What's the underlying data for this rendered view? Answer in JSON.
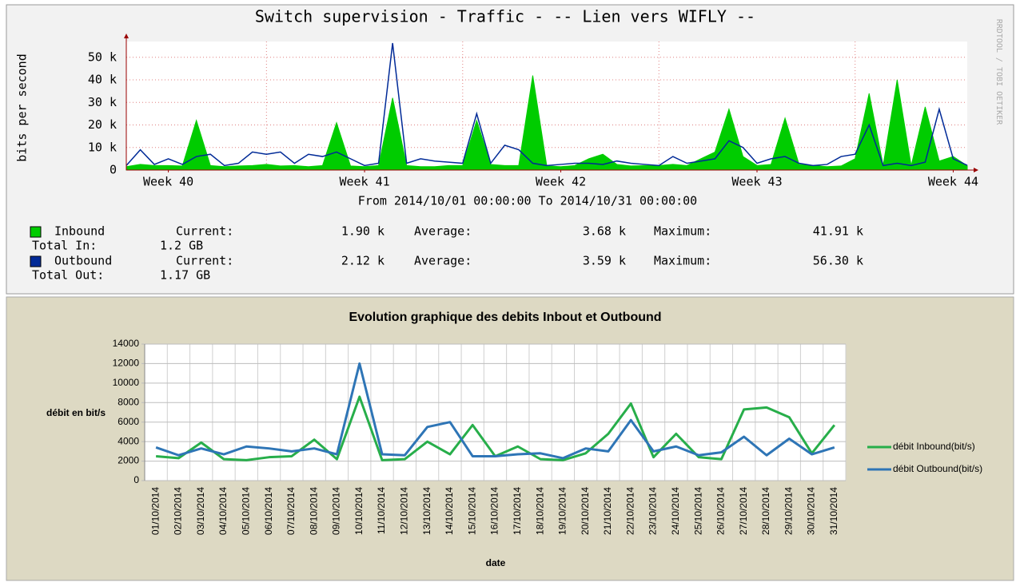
{
  "chart_data": [
    {
      "type": "area",
      "title": "Switch supervision - Traffic - -- Lien vers WIFLY --",
      "subtitle": "From 2014/10/01 00:00:00 To 2014/10/31 00:00:00",
      "ylabel": "bits per second",
      "watermark": "RRDTOOL / TOBI OETIKER",
      "x": [
        0,
        0.5,
        1,
        1.5,
        2,
        2.5,
        3,
        3.5,
        4,
        4.5,
        5,
        5.5,
        6,
        6.5,
        7,
        7.5,
        8,
        8.5,
        9,
        9.5,
        10,
        10.5,
        11,
        11.5,
        12,
        12.5,
        13,
        13.5,
        14,
        14.5,
        15,
        15.5,
        16,
        16.5,
        17,
        17.5,
        18,
        18.5,
        19,
        19.5,
        20,
        20.5,
        21,
        21.5,
        22,
        22.5,
        23,
        23.5,
        24,
        24.5,
        25,
        25.5,
        26,
        26.5,
        27,
        27.5,
        28,
        28.5,
        29,
        29.5,
        30
      ],
      "xlim": [
        0,
        30
      ],
      "xticks": [
        {
          "value": 1.5,
          "label": "Week 40"
        },
        {
          "value": 8.5,
          "label": "Week 41"
        },
        {
          "value": 15.5,
          "label": "Week 42"
        },
        {
          "value": 22.5,
          "label": "Week 43"
        },
        {
          "value": 29.5,
          "label": "Week 44"
        }
      ],
      "x_major_grid": [
        5,
        12,
        19,
        26
      ],
      "ylim": [
        0,
        57000
      ],
      "yticks": [
        0,
        {
          "value": 10000,
          "label": "10 k"
        },
        {
          "value": 20000,
          "label": "20 k"
        },
        {
          "value": 30000,
          "label": "30 k"
        },
        {
          "value": 40000,
          "label": "40 k"
        },
        {
          "value": 50000,
          "label": "50 k"
        }
      ],
      "grid": true,
      "stat_labels": {
        "current": "Current:",
        "average": "Average:",
        "maximum": "Maximum:"
      },
      "series": [
        {
          "name": "Inbound",
          "color": "#00cc00",
          "style": "area",
          "values": [
            1500,
            2500,
            2000,
            2000,
            1800,
            22000,
            2000,
            1500,
            1800,
            2000,
            2500,
            1800,
            2000,
            1500,
            2000,
            21000,
            1800,
            1500,
            2000,
            32000,
            2000,
            1500,
            1500,
            2000,
            2000,
            22000,
            2500,
            2000,
            2000,
            41910,
            1800,
            1500,
            2000,
            5000,
            7000,
            2500,
            1800,
            2000,
            2000,
            2500,
            2000,
            5000,
            8000,
            27000,
            6000,
            2000,
            2500,
            23000,
            2500,
            2000,
            1500,
            1800,
            5000,
            34000,
            2000,
            40000,
            1900,
            28000,
            4000,
            6000,
            1900
          ],
          "current": "1.90 k",
          "average": "3.68 k",
          "maximum": "41.91 k",
          "total_label": "Total In:",
          "total": "1.2 GB"
        },
        {
          "name": "Outbound",
          "color": "#002a97",
          "style": "line",
          "values": [
            2000,
            9000,
            2500,
            5000,
            2500,
            6000,
            7000,
            2000,
            3000,
            8000,
            7000,
            8000,
            3000,
            7000,
            6000,
            8000,
            5000,
            2000,
            3000,
            56300,
            3000,
            5000,
            4000,
            3500,
            3000,
            25000,
            3000,
            11000,
            9000,
            3000,
            2000,
            2500,
            3000,
            3000,
            2500,
            4000,
            3000,
            2500,
            2000,
            6000,
            3000,
            4000,
            5000,
            13000,
            10000,
            3000,
            5000,
            6000,
            3000,
            2000,
            2500,
            6000,
            7000,
            20000,
            2000,
            3000,
            2000,
            3500,
            27000,
            5000,
            2120
          ],
          "current": "2.12 k",
          "average": "3.59 k",
          "maximum": "56.30 k",
          "total_label": "Total Out:",
          "total": "1.17 GB"
        }
      ]
    },
    {
      "type": "line",
      "title": "Evolution graphique des debits Inbout et Outbound",
      "ylabel": "débit en bit/s",
      "xlabel": "date",
      "categories": [
        "01/10/2014",
        "02/10/2014",
        "03/10/2014",
        "04/10/2014",
        "05/10/2014",
        "06/10/2014",
        "07/10/2014",
        "08/10/2014",
        "09/10/2014",
        "10/10/2014",
        "11/10/2014",
        "12/10/2014",
        "13/10/2014",
        "14/10/2014",
        "15/10/2014",
        "16/10/2014",
        "17/10/2014",
        "18/10/2014",
        "19/10/2014",
        "20/10/2014",
        "21/10/2014",
        "22/10/2014",
        "23/10/2014",
        "24/10/2014",
        "25/10/2014",
        "26/10/2014",
        "27/10/2014",
        "28/10/2014",
        "29/10/2014",
        "30/10/2014",
        "31/10/2014"
      ],
      "ylim": [
        0,
        14000
      ],
      "yticks": [
        0,
        2000,
        4000,
        6000,
        8000,
        10000,
        12000,
        14000
      ],
      "grid": true,
      "legend": "right",
      "series": [
        {
          "name": "débit Inbound(bit/s)",
          "color": "#27ae4a",
          "values": [
            2500,
            2300,
            3900,
            2200,
            2100,
            2400,
            2500,
            4200,
            2200,
            8600,
            2100,
            2200,
            4000,
            2700,
            5700,
            2500,
            3500,
            2200,
            2100,
            2800,
            4800,
            7900,
            2400,
            4800,
            2400,
            2200,
            7300,
            7500,
            6500,
            2800,
            5700
          ]
        },
        {
          "name": "débit Outbound(bit/s)",
          "color": "#2e75b6",
          "values": [
            3400,
            2600,
            3300,
            2700,
            3500,
            3300,
            3000,
            3300,
            2700,
            12000,
            2700,
            2600,
            5500,
            6000,
            2500,
            2500,
            2700,
            2800,
            2300,
            3300,
            3000,
            6200,
            3000,
            3500,
            2600,
            2900,
            4500,
            2600,
            4300,
            2700,
            3400
          ]
        }
      ]
    }
  ]
}
